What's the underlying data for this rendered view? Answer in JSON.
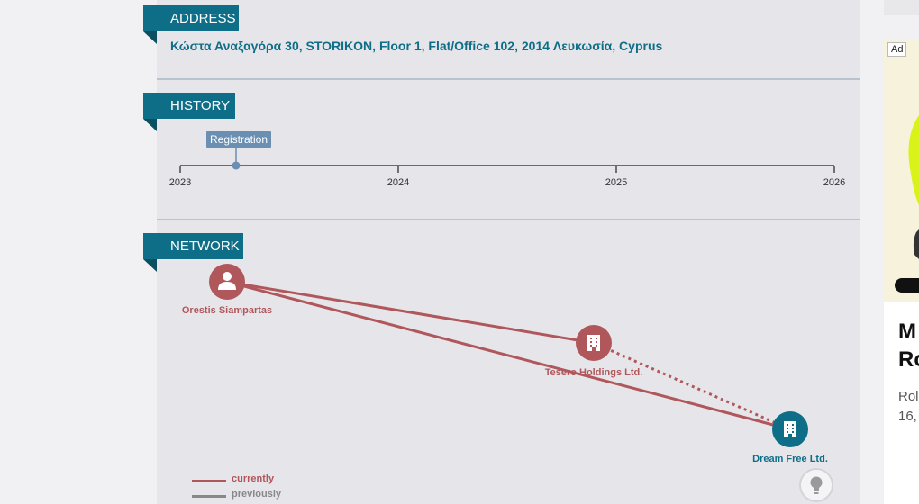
{
  "address": {
    "tab_label": "ADDRESS",
    "text": "Κώστα Αναξαγόρα 30, STORIKON, Floor 1, Flat/Office 102, 2014 Λευκωσία, Cyprus"
  },
  "history": {
    "tab_label": "HISTORY",
    "event_label": "Registration",
    "years": [
      "2023",
      "2024",
      "2025",
      "2026"
    ]
  },
  "network": {
    "tab_label": "NETWORK",
    "nodes": [
      {
        "name": "Orestis Siampartas",
        "kind": "person",
        "color": "#b0575c"
      },
      {
        "name": "Tesero Holdings Ltd.",
        "kind": "company",
        "color": "#b0575c"
      },
      {
        "name": "Dream Free Ltd.",
        "kind": "company",
        "color": "#0f6e87"
      }
    ],
    "legend": {
      "currently": "currently",
      "previously": "previously"
    },
    "colors": {
      "current": "#b0575c",
      "previous": "#888888"
    }
  },
  "ad": {
    "badge": "Ad",
    "headline_lines": [
      "M",
      "Ro"
    ],
    "sub_lines": [
      "Rol",
      "16,"
    ]
  },
  "icons": {
    "bulb": "lightbulb-icon",
    "person": "person-icon",
    "building": "building-icon"
  }
}
